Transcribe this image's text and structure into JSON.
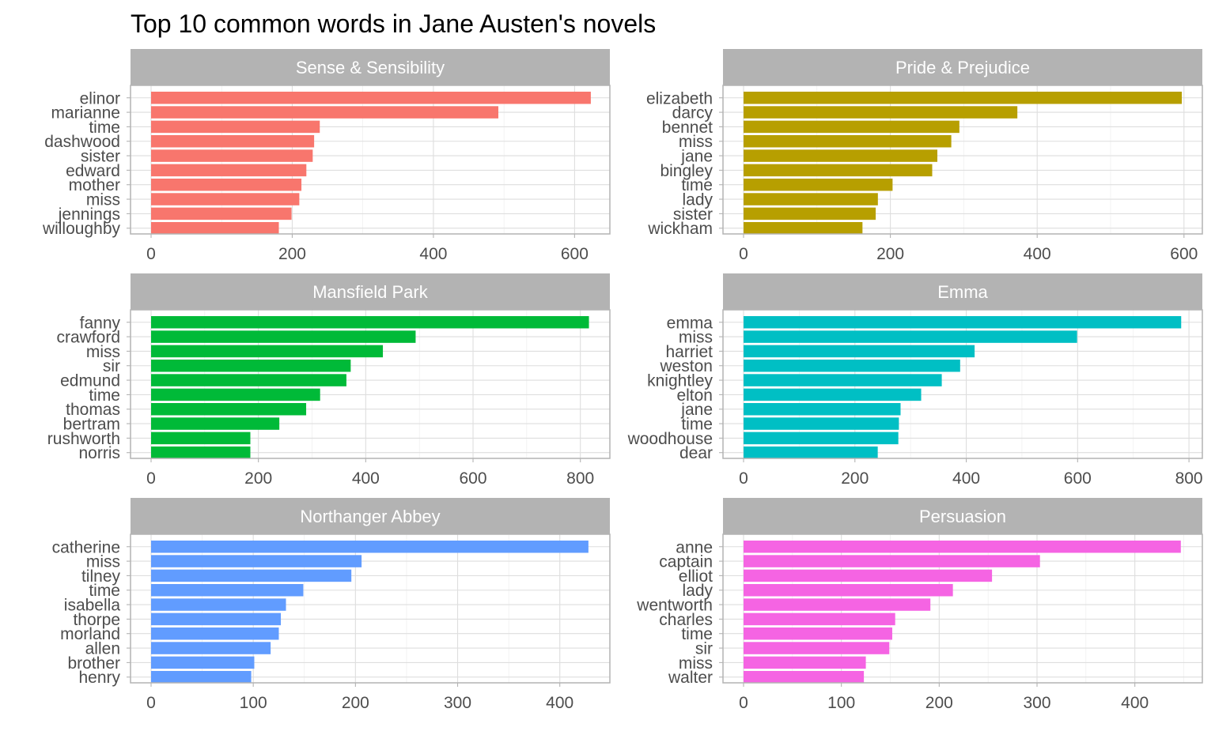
{
  "chart_data": {
    "type": "bar",
    "orientation": "horizontal",
    "title": "Top 10 common words in Jane Austen's novels",
    "facet_layout": "3 rows x 2 columns",
    "grid": true,
    "legend": "none",
    "panels": [
      {
        "name": "Sense & Sensibility",
        "color": "#F8766D",
        "xlim": [
          0,
          650
        ],
        "ticks": [
          0,
          200,
          400,
          600
        ],
        "categories": [
          "elinor",
          "marianne",
          "time",
          "dashwood",
          "sister",
          "edward",
          "mother",
          "miss",
          "jennings",
          "willoughby"
        ],
        "values": [
          623,
          492,
          239,
          231,
          229,
          220,
          213,
          210,
          199,
          181
        ]
      },
      {
        "name": "Pride & Prejudice",
        "color": "#B79F00",
        "xlim": [
          0,
          625
        ],
        "ticks": [
          0,
          200,
          400,
          600
        ],
        "categories": [
          "elizabeth",
          "darcy",
          "bennet",
          "miss",
          "jane",
          "bingley",
          "time",
          "lady",
          "sister",
          "wickham"
        ],
        "values": [
          597,
          373,
          294,
          283,
          264,
          257,
          203,
          183,
          180,
          162
        ]
      },
      {
        "name": "Mansfield Park",
        "color": "#00BA38",
        "xlim": [
          0,
          855
        ],
        "ticks": [
          0,
          200,
          400,
          600,
          800
        ],
        "categories": [
          "fanny",
          "crawford",
          "miss",
          "sir",
          "edmund",
          "time",
          "thomas",
          "bertram",
          "rushworth",
          "norris"
        ],
        "values": [
          816,
          493,
          432,
          372,
          364,
          315,
          289,
          239,
          185,
          185
        ]
      },
      {
        "name": "Emma",
        "color": "#00BFC4",
        "xlim": [
          0,
          824
        ],
        "ticks": [
          0,
          200,
          400,
          600,
          800
        ],
        "categories": [
          "emma",
          "miss",
          "harriet",
          "weston",
          "knightley",
          "elton",
          "jane",
          "time",
          "woodhouse",
          "dear"
        ],
        "values": [
          786,
          599,
          415,
          389,
          356,
          319,
          282,
          279,
          278,
          241
        ]
      },
      {
        "name": "Northanger Abbey",
        "color": "#619CFF",
        "xlim": [
          0,
          449
        ],
        "ticks": [
          0,
          100,
          200,
          300,
          400
        ],
        "categories": [
          "catherine",
          "miss",
          "tilney",
          "time",
          "isabella",
          "thorpe",
          "morland",
          "allen",
          "brother",
          "henry"
        ],
        "values": [
          428,
          206,
          196,
          149,
          132,
          127,
          125,
          117,
          101,
          98
        ]
      },
      {
        "name": "Persuasion",
        "color": "#F564E3",
        "xlim": [
          0,
          469
        ],
        "ticks": [
          0,
          100,
          200,
          300,
          400
        ],
        "categories": [
          "anne",
          "captain",
          "elliot",
          "lady",
          "wentworth",
          "charles",
          "time",
          "sir",
          "miss",
          "walter"
        ],
        "values": [
          447,
          303,
          254,
          214,
          191,
          155,
          152,
          149,
          125,
          123
        ]
      }
    ]
  }
}
